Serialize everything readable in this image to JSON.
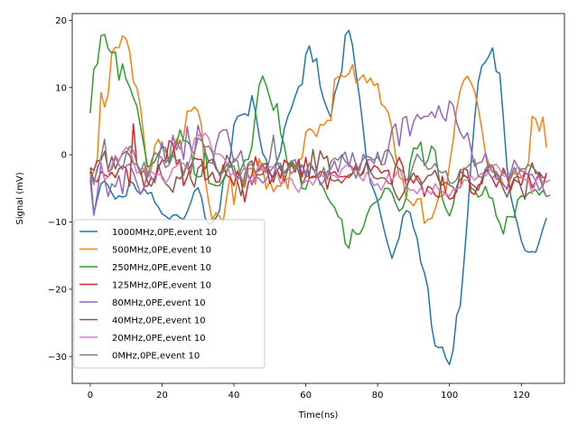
{
  "chart_data": {
    "type": "line",
    "xlabel": "Time(ns)",
    "ylabel": "Signal (mV)",
    "xlim": [
      -5,
      132
    ],
    "ylim": [
      -34,
      21
    ],
    "xticks": [
      0,
      20,
      40,
      60,
      80,
      100,
      120
    ],
    "yticks": [
      -30,
      -20,
      -10,
      0,
      10,
      20
    ],
    "xtick_labels": [
      "0",
      "20",
      "40",
      "60",
      "80",
      "100",
      "120"
    ],
    "ytick_labels": [
      "−30",
      "−20",
      "−10",
      "0",
      "10",
      "20"
    ],
    "legend_position": "lower-left",
    "series": [
      {
        "name": "1000MHz,0PE,event 10",
        "color": "#1f77b4",
        "values": [
          -2.5,
          -8.8,
          -6.5,
          -4.3,
          -3.9,
          -4.6,
          -5.7,
          -6.6,
          -6.1,
          -6.3,
          -6.1,
          -3.9,
          -4.3,
          -5.4,
          -5.8,
          -5.1,
          -5.8,
          -5.6,
          -7.1,
          -7.8,
          -8.8,
          -9.1,
          -9.6,
          -9.0,
          -8.9,
          -9.4,
          -9.6,
          -8.5,
          -7.1,
          -5.4,
          -4.9,
          -6.4,
          -9.4,
          -10.3,
          -10.1,
          -9.4,
          -8.3,
          -4.0,
          -2.5,
          -0.3,
          4.5,
          5.7,
          5.9,
          6.1,
          5.8,
          8.8,
          6.4,
          2.9,
          0.2,
          -0.7,
          -2.8,
          -3.3,
          -1.0,
          0.5,
          3.8,
          5.7,
          6.9,
          8.6,
          10.1,
          10.5,
          14.9,
          16.2,
          13.8,
          14.3,
          10.2,
          8.2,
          6.8,
          5.5,
          9.0,
          10.7,
          12.4,
          17.8,
          18.5,
          16.3,
          12.1,
          8.4,
          3.8,
          -1.3,
          -4.1,
          -5.3,
          -6.9,
          -9.3,
          -11.6,
          -13.6,
          -15.4,
          -13.8,
          -12.3,
          -9.2,
          -8.3,
          -8.6,
          -10.9,
          -12.4,
          -16.0,
          -17.5,
          -19.8,
          -25.4,
          -28.4,
          -28.7,
          -28.6,
          -30.3,
          -31.2,
          -29.1,
          -23.9,
          -22.5,
          -16.2,
          -9.3,
          -1.2,
          5.3,
          10.8,
          13.2,
          13.8,
          14.7,
          15.9,
          12.4,
          12.1,
          5.4,
          -1.8,
          -6.0,
          -8.4,
          -10.5,
          -12.8,
          -14.2,
          -14.5,
          -14.4,
          -14.5,
          -12.9,
          -11.0,
          -9.4
        ]
      },
      {
        "name": "500MHz,0PE,event 10",
        "color": "#ff7f0e",
        "values": [
          -3.2,
          -2.5,
          -0.4,
          9.3,
          7.1,
          9.0,
          15.2,
          16.0,
          15.9,
          17.7,
          17.2,
          15.3,
          10.9,
          9.9,
          7.1,
          2.2,
          -3.4,
          -2.1,
          1.4,
          2.3,
          1.0,
          0.5,
          -1.4,
          -0.1,
          2.4,
          0.8,
          2.7,
          6.5,
          6.5,
          7.1,
          6.5,
          4.3,
          -3.7,
          -7.1,
          -9.8,
          -8.6,
          -9.2,
          -10.0,
          -6.3,
          -3.0,
          -7.4,
          -3.6,
          -3.3,
          -4.9,
          -2.1,
          -2.0,
          -4.4,
          -0.6,
          -1.9,
          -5.1,
          -3.9,
          -5.5,
          -4.6,
          -4.7,
          -3.0,
          -5.1,
          -0.9,
          -2.0,
          -0.9,
          -0.4,
          3.3,
          3.9,
          3.5,
          2.7,
          4.5,
          4.4,
          5.1,
          5.1,
          11.2,
          11.6,
          11.7,
          11.6,
          12.1,
          13.4,
          10.7,
          11.3,
          11.9,
          10.7,
          11.4,
          10.3,
          10.6,
          7.5,
          7.1,
          6.2,
          3.9,
          -0.1,
          -3.3,
          -3.8,
          -6.5,
          -7.0,
          -7.6,
          -6.6,
          -6.5,
          -10.2,
          -9.6,
          -9.5,
          -8.1,
          -6.2,
          -6.2,
          -5.4,
          -1.5,
          2.0,
          6.8,
          9.6,
          11.1,
          11.7,
          10.7,
          9.4,
          7.0,
          3.8,
          0.3,
          -1.4,
          -1.6,
          -3.0,
          -3.2,
          -4.4,
          -5.2,
          -3.6,
          -2.6,
          -3.2,
          -3.5,
          -2.5,
          -1.1,
          5.7,
          5.3,
          3.5,
          5.6,
          1.1
        ]
      },
      {
        "name": "250MHz,0PE,event 10",
        "color": "#2ca02c",
        "values": [
          6.2,
          12.7,
          13.5,
          17.7,
          17.9,
          15.8,
          15.1,
          15.3,
          11.1,
          13.5,
          11.2,
          10.1,
          8.5,
          7.2,
          4.2,
          1.2,
          -1.8,
          -1.5,
          -1.0,
          0.2,
          1.2,
          1.0,
          -1.2,
          0.6,
          1.5,
          3.7,
          2.1,
          2.0,
          1.3,
          -2.9,
          -3.3,
          -3.2,
          0.8,
          -4.2,
          -4.4,
          -4.6,
          -4.6,
          -3.7,
          -2.5,
          -1.5,
          -1.7,
          -3.6,
          -2.1,
          -0.8,
          -0.7,
          1.2,
          6.1,
          10.3,
          11.7,
          10.3,
          8.4,
          6.6,
          7.6,
          3.2,
          1.4,
          -1.7,
          -0.9,
          -1.6,
          -2.4,
          -5.0,
          -5.1,
          -3.4,
          -3.4,
          -3.0,
          -4.1,
          -5.0,
          -6.3,
          -7.2,
          -7.8,
          -9.2,
          -9.6,
          -13.2,
          -13.9,
          -11.1,
          -11.8,
          -11.8,
          -10.8,
          -9.0,
          -7.7,
          -7.2,
          -6.9,
          -6.3,
          -5.0,
          -5.0,
          -5.7,
          -7.2,
          -8.4,
          -7.9,
          -6.3,
          -1.3,
          1.0,
          0.9,
          1.9,
          -1.6,
          -0.8,
          1.3,
          0.6,
          -3.2,
          -6.5,
          -8.1,
          -9.1,
          -7.5,
          -4.7,
          -3.7,
          -3.1,
          -3.4,
          -4.9,
          -5.3,
          -6.3,
          -6.0,
          -4.7,
          -6.3,
          -6.5,
          -9.1,
          -10.2,
          -11.8,
          -9.2,
          -9.2,
          -9.3,
          -6.7,
          -6.1,
          -6.3,
          -5.7,
          -5.5,
          -5.2,
          -6.0,
          -5.3,
          -6.2,
          -6.0
        ]
      },
      {
        "name": "125MHz,0PE,event 10",
        "color": "#d62728",
        "values": [
          -2.0,
          -3.8,
          -4.0,
          -2.5,
          -3.0,
          -3.3,
          -2.6,
          -3.4,
          -2.1,
          -1.7,
          -2.0,
          -4.6,
          4.6,
          -1.5,
          -2.3,
          -4.8,
          -4.6,
          -3.4,
          -4.0,
          -1.9,
          -0.8,
          -0.9,
          2.1,
          1.7,
          -1.4,
          -0.8,
          -4.6,
          -3.3,
          -1.6,
          -0.5,
          -0.7,
          -0.7,
          -3.8,
          -3.4,
          -2.6,
          -4.1,
          -4.0,
          -1.5,
          -3.1,
          -3.4,
          -4.6,
          -2.4,
          -3.9,
          -7.0,
          -4.2,
          -3.0,
          -0.3,
          -2.4,
          -1.4,
          -1.3,
          -4.3,
          -3.2,
          -2.2,
          -3.5,
          -0.8,
          -1.3,
          -1.2,
          -2.6,
          -0.7,
          -3.3,
          -0.4,
          -3.5,
          -3.2,
          -3.4,
          -2.5,
          -2.6,
          -5.1,
          -2.8,
          -2.5,
          -3.2,
          -3.3,
          -3.2,
          -3.4,
          -2.8,
          -1.3,
          -3.3,
          -2.4,
          -1.0,
          -2.5,
          -1.6,
          -1.9,
          -2.7,
          -2.4,
          -2.3,
          -4.4,
          -1.6,
          -0.4,
          -1.7,
          -4.8,
          -3.4,
          -4.2,
          -3.1,
          -3.9,
          -6.2,
          -4.7,
          -5.0,
          -6.0,
          -6.4,
          -3.2,
          -5.8,
          -6.6,
          -6.4,
          -5.0,
          -4.9,
          -2.0,
          -2.3,
          -5.6,
          -5.9,
          -4.5,
          -4.3,
          -2.1,
          -2.8,
          -3.6,
          -4.8,
          -3.7,
          -2.0,
          -3.3,
          -5.3,
          -3.7,
          -4.0,
          -4.5,
          -2.7,
          -3.0,
          -4.9,
          -3.9,
          -2.7,
          -4.6,
          -2.7
        ]
      },
      {
        "name": "80MHz,0PE,event 10",
        "color": "#9467bd",
        "values": [
          -3.8,
          -9.0,
          -5.8,
          -1.4,
          -3.7,
          -6.2,
          -4.3,
          -4.8,
          -3.1,
          -5.8,
          -1.6,
          -1.4,
          -2.7,
          -4.2,
          -5.9,
          -4.8,
          -2.6,
          -3.3,
          -4.2,
          -0.7,
          1.9,
          -1.2,
          -0.6,
          2.9,
          0.7,
          2.2,
          -0.7,
          4.2,
          0.9,
          0.1,
          4.4,
          2.4,
          0.5,
          -1.1,
          -1.3,
          1.4,
          3.3,
          3.7,
          3.7,
          1.5,
          -1.1,
          -0.4,
          0.6,
          -2.1,
          -3.0,
          -4.5,
          -3.3,
          -3.5,
          -4.2,
          -3.7,
          -2.5,
          -1.8,
          -1.0,
          -2.3,
          -2.8,
          -2.2,
          -1.1,
          -0.7,
          -2.7,
          -1.5,
          -3.3,
          -1.2,
          -2.2,
          -2.4,
          -4.5,
          -4.0,
          -2.5,
          -2.1,
          -0.9,
          -2.6,
          -0.3,
          0.4,
          -1.8,
          0.3,
          -1.5,
          -2.3,
          0.1,
          -0.8,
          -0.7,
          -1.3,
          0.4,
          -1.5,
          -1.4,
          1.0,
          3.8,
          4.6,
          1.3,
          5.4,
          5.7,
          2.8,
          4.9,
          6.0,
          5.3,
          5.7,
          5.7,
          6.4,
          5.5,
          7.3,
          5.7,
          5.0,
          8.0,
          7.4,
          4.8,
          3.3,
          2.4,
          3.3,
          0.8,
          -1.7,
          -1.2,
          -1.1,
          0.2,
          -2.8,
          -3.5,
          -2.8,
          -4.0,
          -4.4,
          -5.1,
          -2.8,
          -0.8,
          -1.7,
          -2.4,
          -2.6,
          -3.0,
          -2.9,
          -3.9,
          -5.3,
          -4.4,
          -3.9
        ]
      },
      {
        "name": "40MHz,0PE,event 10",
        "color": "#8c564b",
        "values": [
          -1.9,
          -2.3,
          -0.9,
          -0.8,
          0.5,
          -2.2,
          -0.3,
          -2.1,
          -0.8,
          0.1,
          0.5,
          -0.1,
          -1.3,
          -1.4,
          -2.9,
          -2.3,
          -4.1,
          -4.7,
          -3.4,
          -1.5,
          -3.4,
          -4.3,
          -4.8,
          -5.6,
          -3.3,
          -3.6,
          -2.8,
          -1.1,
          -3.6,
          -4.8,
          -2.0,
          -1.5,
          -2.1,
          -0.9,
          -0.7,
          -2.1,
          -2.8,
          -2.2,
          -0.1,
          -1.0,
          -2.8,
          -4.0,
          -6.1,
          -3.0,
          -1.3,
          -0.9,
          -3.0,
          -3.0,
          -2.9,
          -1.8,
          -2.6,
          -4.1,
          -2.3,
          -1.6,
          -4.1,
          -2.1,
          -1.5,
          -2.3,
          -1.4,
          -4.5,
          -3.2,
          -3.1,
          0.8,
          -2.4,
          0.6,
          -0.6,
          -0.2,
          -3.7,
          -3.9,
          -3.7,
          -4.2,
          -3.5,
          -3.0,
          -2.8,
          -1.9,
          -3.1,
          -2.8,
          -0.8,
          -2.5,
          -3.4,
          -3.6,
          -3.4,
          -3.5,
          -4.2,
          -4.4,
          -5.9,
          -6.8,
          -5.9,
          -4.7,
          -3.6,
          -2.7,
          -3.7,
          -4.5,
          -3.9,
          -3.1,
          -3.0,
          -2.3,
          -3.8,
          -4.5,
          -4.1,
          -4.5,
          -4.8,
          -5.6,
          -2.4,
          -3.0,
          -3.4,
          -4.3,
          -4.7,
          -5.3,
          -3.7,
          -2.6,
          -1.8,
          -1.6,
          -3.6,
          -3.7,
          -5.1,
          -6.3,
          -4.8,
          -3.5,
          -3.2,
          -5.1,
          -6.6,
          -2.8,
          -1.2,
          -2.8,
          -2.6,
          -3.4,
          -3.3
        ]
      },
      {
        "name": "20MHz,0PE,event 10",
        "color": "#e377c2",
        "values": [
          -2.8,
          -4.5,
          -1.7,
          -1.1,
          -3.7,
          -3.3,
          -1.6,
          -0.1,
          -1.0,
          0.4,
          1.1,
          0.7,
          -1.0,
          -2.8,
          -2.2,
          -2.0,
          -3.4,
          -2.5,
          -3.0,
          -2.9,
          -3.1,
          -4.2,
          -3.4,
          -2.0,
          -1.7,
          -1.2,
          -1.3,
          -2.1,
          -0.3,
          2.3,
          3.0,
          2.6,
          3.2,
          2.5,
          0.6,
          0.1,
          0.1,
          -0.3,
          -1.3,
          -3.1,
          -2.6,
          -3.8,
          -2.8,
          -1.8,
          -3.4,
          -4.0,
          -2.9,
          -1.4,
          -2.5,
          -2.1,
          -1.8,
          -1.8,
          -2.5,
          -4.4,
          -4.1,
          -3.5,
          -3.6,
          -4.8,
          -5.6,
          -4.4,
          -3.9,
          -3.8,
          -4.5,
          -3.5,
          -2.8,
          -3.3,
          -3.0,
          -3.0,
          -3.1,
          -3.5,
          -2.2,
          -1.7,
          -1.2,
          -2.4,
          -2.3,
          -3.3,
          -3.9,
          -2.6,
          -3.5,
          -4.6,
          -4.3,
          -5.3,
          -4.2,
          -2.9,
          -3.8,
          -3.0,
          -2.0,
          -3.4,
          -4.6,
          -5.3,
          -5.2,
          -5.8,
          -4.9,
          -5.7,
          -5.4,
          -5.9,
          -4.3,
          -5.2,
          -5.4,
          -5.9,
          -6.1,
          -5.2,
          -5.1,
          -4.8,
          -3.8,
          -3.8,
          -3.1,
          -3.8,
          -3.2,
          -2.7,
          -3.2,
          -2.5,
          -1.6,
          -1.4,
          -2.2,
          -3.1,
          -3.3,
          -2.6,
          -2.6,
          -1.7,
          -3.5,
          -3.7,
          -3.7,
          -5.8,
          -3.9,
          -3.2,
          -4.2,
          -4.0,
          -3.8
        ]
      },
      {
        "name": "0MHz,0PE,event 10",
        "color": "#7f7f7f",
        "values": [
          -2.5,
          -4.1,
          -2.2,
          -0.4,
          2.3,
          -2.5,
          -2.2,
          -0.4,
          -1.5,
          -2.2,
          0.1,
          1.3,
          0.6,
          -1.3,
          -2.6,
          -1.1,
          -3.2,
          -0.9,
          0.3,
          -0.1,
          -0.5,
          -1.9,
          -1.5,
          0.0,
          -0.9,
          -0.7,
          -3.1,
          -1.1,
          -2.8,
          0.2,
          2.5,
          2.1,
          1.1,
          1.3,
          0.3,
          -1.7,
          -3.1,
          -2.6,
          -1.4,
          -1.9,
          -0.6,
          -0.9,
          -3.6,
          -4.4,
          -1.6,
          -1.4,
          -2.6,
          -2.1,
          -1.3,
          -2.7,
          -0.5,
          2.9,
          -1.3,
          -1.3,
          -2.7,
          -1.9,
          -2.8,
          -2.2,
          -1.4,
          -1.6,
          -2.7,
          -1.2,
          -1.8,
          -3.4,
          -3.3,
          -1.9,
          -3.7,
          -1.0,
          -0.5,
          -0.8,
          0.0,
          -1.0,
          -1.4,
          -1.9,
          -3.5,
          -1.6,
          -0.6,
          -0.2,
          -0.4,
          -0.8,
          -0.3,
          -1.3,
          0.5,
          0.8,
          -0.2,
          -1.7,
          -2.1,
          -2.5,
          -3.8,
          -3.2,
          -1.4,
          0.1,
          -0.7,
          -1.2,
          -2.2,
          -2.0,
          -1.3,
          -2.4,
          -2.7,
          -2.4,
          -4.2,
          -4.2,
          -3.7,
          -2.2,
          -2.2,
          -1.8,
          -1.2,
          -0.7,
          -3.2,
          -3.4,
          -2.1,
          -1.4,
          -2.6,
          -2.5,
          -3.4,
          -2.6,
          -3.1,
          -3.5,
          -1.9,
          -3.0,
          -2.1,
          -2.1,
          -1.5,
          -1.8,
          -2.3,
          -3.3,
          -4.9,
          -6.3
        ]
      }
    ]
  }
}
